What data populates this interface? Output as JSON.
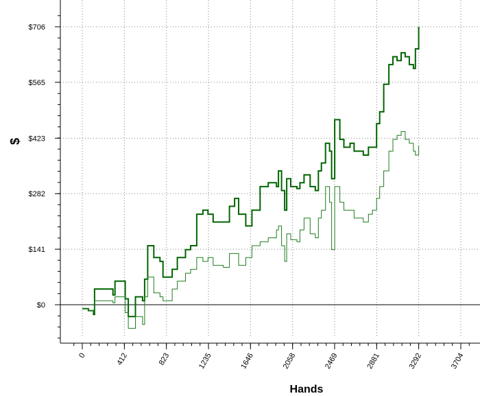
{
  "chart_data": {
    "type": "line",
    "title": "",
    "xlabel": "Hands",
    "ylabel": "$",
    "xlim": [
      -100,
      3800
    ],
    "ylim": [
      -100,
      760
    ],
    "x_ticks": [
      0,
      412,
      823,
      1235,
      1646,
      2058,
      2469,
      2881,
      3292,
      3704
    ],
    "x_tick_labels": [
      "0",
      "412",
      "823",
      "1235",
      "1646",
      "2058",
      "2469",
      "2881",
      "3292",
      "3704"
    ],
    "y_ticks": [
      0,
      141,
      282,
      423,
      565,
      706
    ],
    "y_tick_labels": [
      "$0",
      "$141",
      "$282",
      "$423",
      "$565",
      "$706"
    ],
    "grid": true,
    "legend": "none",
    "colors": {
      "series_thick": "#006400",
      "series_thin": "#1e7b1e",
      "grid": "#808080",
      "zero_line": "#000000"
    },
    "series": [
      {
        "x": [
          0,
          60,
          110,
          120,
          300,
          320,
          420,
          450,
          520,
          590,
          610,
          640,
          700,
          760,
          790,
          880,
          930,
          1010,
          1060,
          1120,
          1180,
          1230,
          1280,
          1380,
          1440,
          1490,
          1530,
          1600,
          1660,
          1740,
          1820,
          1900,
          1920,
          1950,
          1980,
          2000,
          2040,
          2100,
          2130,
          2170,
          2230,
          2280,
          2310,
          2340,
          2380,
          2420,
          2440,
          2470,
          2520,
          2560,
          2620,
          2660,
          2700,
          2750,
          2800,
          2840,
          2880,
          2910,
          2950,
          3000,
          3040,
          3080,
          3120,
          3160,
          3200,
          3240,
          3260,
          3292
        ],
        "y": [
          -10,
          -15,
          -25,
          40,
          25,
          60,
          15,
          -30,
          20,
          10,
          65,
          150,
          120,
          110,
          70,
          90,
          120,
          140,
          150,
          230,
          240,
          230,
          210,
          210,
          250,
          270,
          230,
          200,
          240,
          300,
          310,
          300,
          340,
          290,
          240,
          320,
          300,
          295,
          310,
          330,
          300,
          290,
          340,
          360,
          410,
          390,
          320,
          470,
          420,
          400,
          410,
          390,
          390,
          380,
          400,
          400,
          460,
          490,
          560,
          610,
          630,
          620,
          640,
          630,
          610,
          600,
          650,
          706
        ]
      },
      {
        "x": [
          0,
          60,
          110,
          120,
          300,
          320,
          420,
          450,
          520,
          590,
          610,
          640,
          700,
          760,
          790,
          880,
          930,
          1010,
          1060,
          1120,
          1180,
          1230,
          1280,
          1380,
          1440,
          1490,
          1530,
          1600,
          1660,
          1740,
          1820,
          1900,
          1920,
          1950,
          1980,
          2000,
          2040,
          2100,
          2130,
          2170,
          2230,
          2280,
          2310,
          2340,
          2380,
          2420,
          2440,
          2470,
          2520,
          2560,
          2620,
          2660,
          2700,
          2750,
          2800,
          2840,
          2880,
          2910,
          2950,
          3000,
          3040,
          3080,
          3120,
          3160,
          3200,
          3240,
          3260,
          3292
        ],
        "y": [
          -10,
          -15,
          -20,
          10,
          5,
          20,
          -20,
          -60,
          -30,
          -50,
          20,
          70,
          30,
          20,
          10,
          40,
          60,
          80,
          90,
          120,
          110,
          120,
          100,
          95,
          130,
          130,
          100,
          120,
          150,
          160,
          170,
          190,
          200,
          150,
          110,
          180,
          165,
          160,
          190,
          220,
          180,
          170,
          220,
          240,
          300,
          260,
          140,
          300,
          260,
          240,
          240,
          220,
          220,
          210,
          230,
          240,
          270,
          300,
          340,
          390,
          420,
          430,
          440,
          420,
          410,
          390,
          380,
          405
        ]
      }
    ]
  }
}
